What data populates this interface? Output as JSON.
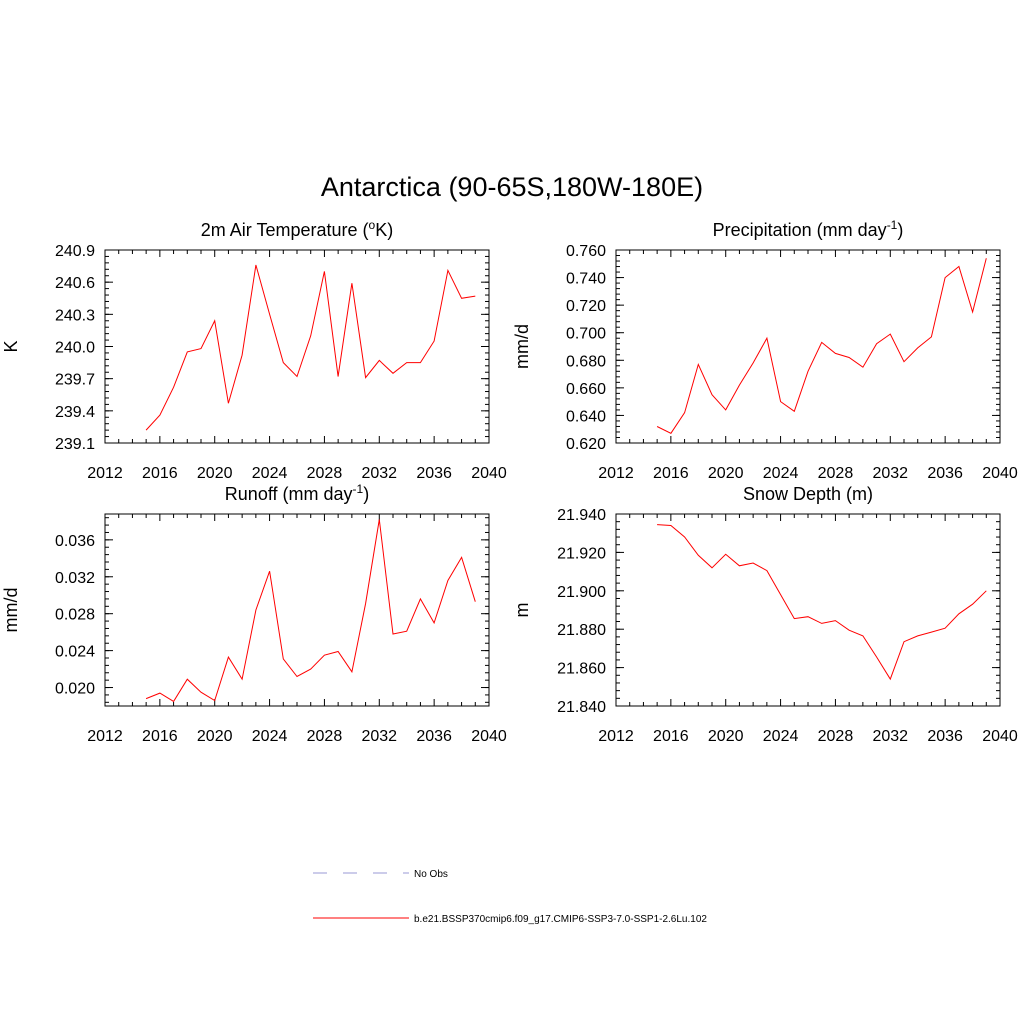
{
  "title": "Antarctica (90-65S,180W-180E)",
  "legend": [
    {
      "label": "No Obs",
      "color": "#9a9ad6",
      "dash": true
    },
    {
      "label": "b.e21.BSSP370cmip6.f09_g17.CMIP6-SSP3-7.0-SSP1-2.6Lu.102",
      "color": "#ff0000",
      "dash": false
    }
  ],
  "chart_data": [
    {
      "type": "line",
      "title": "2m Air Temperature",
      "title_unit_base": "K",
      "title_unit_sup": "o",
      "title_unit_template": "(%SUP%K)",
      "ylabel": "K",
      "xlabel": "",
      "xlim": [
        2012,
        2040
      ],
      "ylim": [
        239.1,
        240.9
      ],
      "xticks": [
        "2012",
        "2016",
        "2020",
        "2024",
        "2028",
        "2032",
        "2036",
        "2040"
      ],
      "yticks": [
        "239.1",
        "239.4",
        "239.7",
        "240.0",
        "240.3",
        "240.6",
        "240.9"
      ],
      "series": [
        {
          "color": "#ff0000",
          "x": [
            2015,
            2016,
            2017,
            2018,
            2019,
            2020,
            2021,
            2022,
            2023,
            2024,
            2025,
            2026,
            2027,
            2028,
            2029,
            2030,
            2031,
            2032,
            2033,
            2034,
            2035,
            2036,
            2037,
            2038,
            2039
          ],
          "values": [
            239.22,
            239.36,
            239.62,
            239.95,
            239.98,
            240.24,
            239.47,
            239.92,
            240.76,
            240.3,
            239.85,
            239.72,
            240.1,
            240.7,
            239.72,
            240.59,
            239.71,
            239.87,
            239.75,
            239.85,
            239.85,
            240.05,
            240.71,
            240.45,
            240.47
          ]
        }
      ]
    },
    {
      "type": "line",
      "title": "Precipitation",
      "title_unit_template": "(mm day%SUP%)",
      "title_unit_sup": "-1",
      "ylabel": "mm/d",
      "xlabel": "",
      "xlim": [
        2012,
        2040
      ],
      "ylim": [
        0.62,
        0.76
      ],
      "xticks": [
        "2012",
        "2016",
        "2020",
        "2024",
        "2028",
        "2032",
        "2036",
        "2040"
      ],
      "yticks": [
        "0.620",
        "0.640",
        "0.660",
        "0.680",
        "0.700",
        "0.720",
        "0.740",
        "0.760"
      ],
      "series": [
        {
          "color": "#ff0000",
          "x": [
            2015,
            2016,
            2017,
            2018,
            2019,
            2020,
            2021,
            2022,
            2023,
            2024,
            2025,
            2026,
            2027,
            2028,
            2029,
            2030,
            2031,
            2032,
            2033,
            2034,
            2035,
            2036,
            2037,
            2038,
            2039
          ],
          "values": [
            0.632,
            0.627,
            0.642,
            0.677,
            0.655,
            0.644,
            0.662,
            0.678,
            0.696,
            0.65,
            0.643,
            0.672,
            0.693,
            0.685,
            0.682,
            0.675,
            0.692,
            0.699,
            0.679,
            0.689,
            0.697,
            0.74,
            0.748,
            0.715,
            0.754
          ]
        }
      ]
    },
    {
      "type": "line",
      "title": "Runoff",
      "title_unit_template": "(mm day%SUP%)",
      "title_unit_sup": "-1",
      "ylabel": "mm/d",
      "xlabel": "",
      "xlim": [
        2012,
        2040
      ],
      "ylim": [
        0.018,
        0.0388
      ],
      "xticks": [
        "2012",
        "2016",
        "2020",
        "2024",
        "2028",
        "2032",
        "2036",
        "2040"
      ],
      "yticks": [
        "0.020",
        "0.024",
        "0.028",
        "0.032",
        "0.036"
      ],
      "ytick_values": [
        0.02,
        0.024,
        0.028,
        0.032,
        0.036
      ],
      "series": [
        {
          "color": "#ff0000",
          "x": [
            2015,
            2016,
            2017,
            2018,
            2019,
            2020,
            2021,
            2022,
            2023,
            2024,
            2025,
            2026,
            2027,
            2028,
            2029,
            2030,
            2031,
            2032,
            2033,
            2034,
            2035,
            2036,
            2037,
            2038,
            2039
          ],
          "values": [
            0.0188,
            0.0194,
            0.0185,
            0.0209,
            0.0195,
            0.0186,
            0.0233,
            0.0209,
            0.0284,
            0.0326,
            0.0231,
            0.0212,
            0.022,
            0.0235,
            0.0239,
            0.0217,
            0.0291,
            0.0382,
            0.0258,
            0.0261,
            0.0296,
            0.027,
            0.0316,
            0.0341,
            0.0293
          ]
        }
      ]
    },
    {
      "type": "line",
      "title": "Snow Depth (m)",
      "ylabel": "m",
      "xlabel": "",
      "xlim": [
        2012,
        2040
      ],
      "ylim": [
        21.84,
        21.94
      ],
      "xticks": [
        "2012",
        "2016",
        "2020",
        "2024",
        "2028",
        "2032",
        "2036",
        "2040"
      ],
      "yticks": [
        "21.840",
        "21.860",
        "21.880",
        "21.900",
        "21.920",
        "21.940"
      ],
      "series": [
        {
          "color": "#ff0000",
          "x": [
            2015,
            2016,
            2017,
            2018,
            2019,
            2020,
            2021,
            2022,
            2023,
            2024,
            2025,
            2026,
            2027,
            2028,
            2029,
            2030,
            2031,
            2032,
            2033,
            2034,
            2035,
            2036,
            2037,
            2038,
            2039
          ],
          "values": [
            21.9345,
            21.934,
            21.928,
            21.9185,
            21.912,
            21.919,
            21.913,
            21.9145,
            21.9105,
            21.898,
            21.8855,
            21.8865,
            21.883,
            21.8845,
            21.8795,
            21.8765,
            21.8655,
            21.854,
            21.8735,
            21.8765,
            21.8785,
            21.8805,
            21.888,
            21.893,
            21.9
          ]
        }
      ]
    }
  ]
}
